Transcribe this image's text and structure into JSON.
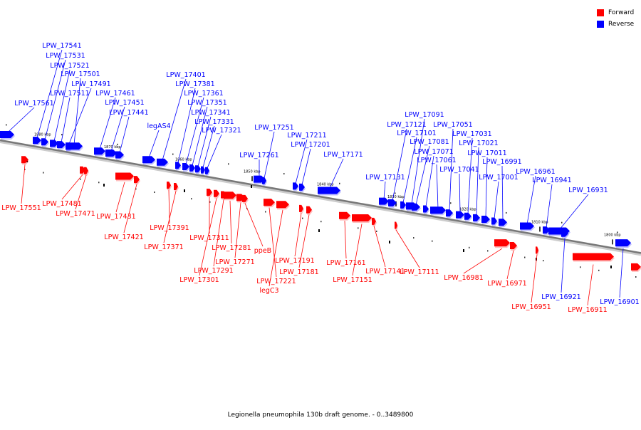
{
  "legend": {
    "forward_label": "Forward",
    "reverse_label": "Reverse",
    "forward_color": "#ff0000",
    "reverse_color": "#0000ff"
  },
  "caption": "Legionella pneumophila 130b draft genome. - 0..3489800",
  "ticks": [
    "1880 kbp",
    "1870 kbp",
    "1860 kbp",
    "1850 kbp",
    "1840 kbp",
    "1830 kbp",
    "1820 kbp",
    "1810 kbp",
    "1800 kbp"
  ],
  "reverse_genes": [
    "LPW_17561",
    "LPW_17541",
    "LPW_17531",
    "LPW_17521",
    "LPW_17511",
    "LPW_17501",
    "LPW_17491",
    "LPW_17461",
    "LPW_17451",
    "LPW_17441",
    "legAS4",
    "LPW_17401",
    "LPW_17381",
    "LPW_17361",
    "LPW_17351",
    "LPW_17341",
    "LPW_17331",
    "LPW_17321",
    "LPW_17261",
    "LPW_17251",
    "LPW_17211",
    "LPW_17201",
    "LPW_17171",
    "LPW_17131",
    "LPW_17121",
    "LPW_17101",
    "LPW_17091",
    "LPW_17081",
    "LPW_17071",
    "LPW_17061",
    "LPW_17051",
    "LPW_17041",
    "LPW_17031",
    "LPW_17021",
    "LPW_17011",
    "LPW_17001",
    "LPW_16991",
    "LPW_16961",
    "LPW_16941",
    "LPW_16931",
    "LPW_16921",
    "LPW_16901"
  ],
  "forward_genes": [
    "LPW_17551",
    "LPW_17481",
    "LPW_17471",
    "LPW_17431",
    "LPW_17421",
    "LPW_17391",
    "LPW_17371",
    "LPW_17311",
    "LPW_17301",
    "LPW_17291",
    "LPW_17281",
    "LPW_17271",
    "ppeB",
    "LPW_17221",
    "legC3",
    "LPW_17191",
    "LPW_17181",
    "LPW_17161",
    "LPW_17151",
    "LPW_17141",
    "LPW_17111",
    "LPW_16981",
    "LPW_16971",
    "LPW_16951",
    "LPW_16911"
  ]
}
